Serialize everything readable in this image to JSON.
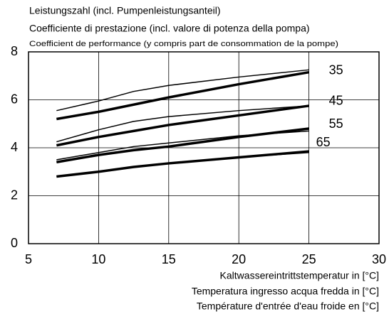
{
  "chart_data": {
    "type": "line",
    "title_lines": [
      "Leistungszahl (incl. Pumpenleistungsanteil)",
      "Coefficiente di prestazione (incl. valore di potenza della pompa)",
      "Coefficient de performance (y compris part de consommation de la pompe)"
    ],
    "xlabel_lines": [
      "Kaltwassereintrittstemperatur in [°C]",
      "Temperatura ingresso acqua fredda in  [°C]",
      "Température d'entrée d'eau froide en [°C]"
    ],
    "x": [
      7,
      10,
      12.5,
      15,
      20,
      25
    ],
    "series": [
      {
        "name": "35",
        "color": "#000000",
        "line_width": 3.5,
        "values": [
          5.2,
          5.5,
          5.8,
          6.1,
          6.65,
          7.15
        ]
      },
      {
        "color": "#000000",
        "line_width": 1.5,
        "values": [
          5.55,
          5.95,
          6.35,
          6.6,
          6.95,
          7.25
        ]
      },
      {
        "name": "45",
        "color": "#000000",
        "line_width": 3.5,
        "values": [
          4.1,
          4.45,
          4.7,
          4.95,
          5.35,
          5.75
        ]
      },
      {
        "color": "#000000",
        "line_width": 1.5,
        "values": [
          4.25,
          4.75,
          5.1,
          5.3,
          5.55,
          5.75
        ]
      },
      {
        "name": "55",
        "color": "#000000",
        "line_width": 3.5,
        "values": [
          3.4,
          3.7,
          3.9,
          4.05,
          4.45,
          4.8
        ]
      },
      {
        "color": "#000000",
        "line_width": 1.5,
        "values": [
          3.5,
          3.8,
          4.05,
          4.2,
          4.5,
          4.7
        ]
      },
      {
        "name": "65",
        "color": "#000000",
        "line_width": 3.5,
        "values": [
          2.8,
          3.0,
          3.2,
          3.35,
          3.6,
          3.85
        ]
      },
      {
        "color": "#000000",
        "line_width": 1.5,
        "values": [
          2.8,
          3.0,
          3.2,
          3.35,
          3.6,
          3.8
        ]
      }
    ],
    "xlim": [
      5,
      30
    ],
    "xticks": [
      5,
      10,
      15,
      20,
      25,
      30
    ],
    "ylim": [
      0,
      8
    ],
    "yticks": [
      0,
      2,
      4,
      6,
      8
    ],
    "grid": true
  }
}
